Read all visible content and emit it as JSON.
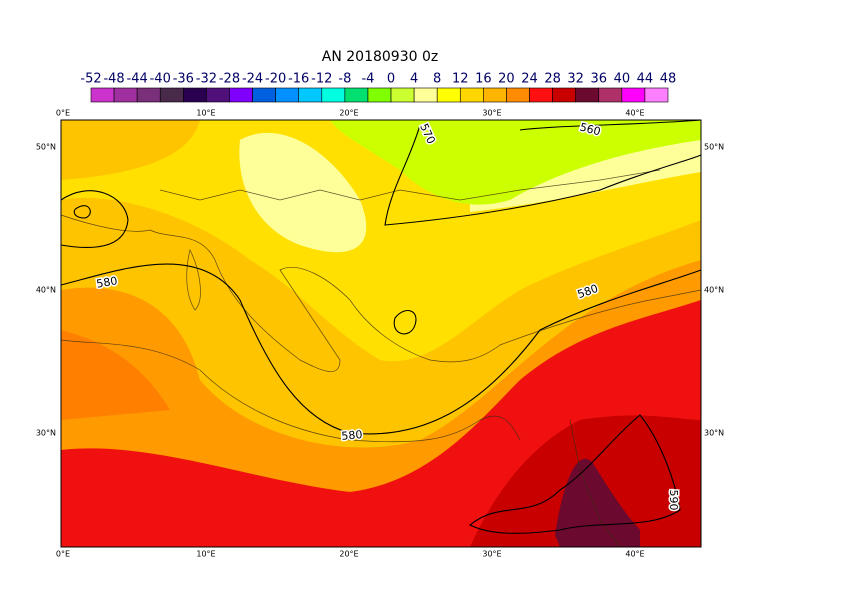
{
  "map": {
    "title": "AN  20180930 0z",
    "colorbar": {
      "labels": [
        -52,
        -48,
        -44,
        -40,
        -36,
        -32,
        -28,
        -24,
        -20,
        -16,
        -12,
        -8,
        -4,
        0,
        4,
        8,
        12,
        16,
        20,
        24,
        28,
        32,
        36,
        40,
        44,
        48
      ],
      "colors": [
        "#cc33cc",
        "#a030a0",
        "#7a2f7a",
        "#4a2a4a",
        "#2a0050",
        "#50107a",
        "#8000ff",
        "#0060e0",
        "#0090ff",
        "#00c8ff",
        "#00ffe0",
        "#00e070",
        "#80ff00",
        "#ccff30",
        "#ffff9a",
        "#ffff00",
        "#ffd700",
        "#ffb400",
        "#ff8c00",
        "#ff1010",
        "#c80000",
        "#6b0a2e",
        "#b0306a",
        "#ff00ff",
        "#ff80ff"
      ]
    },
    "lon_labels": [
      "0°E",
      "10°E",
      "20°E",
      "30°E",
      "40°E"
    ],
    "lat_labels": [
      "50°N",
      "40°N",
      "30°N"
    ],
    "contour_labels": [
      570,
      560,
      580,
      580,
      580,
      590
    ]
  }
}
